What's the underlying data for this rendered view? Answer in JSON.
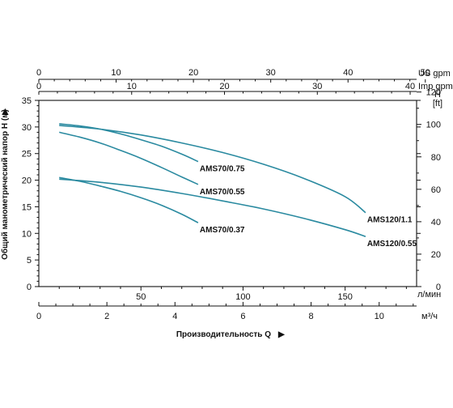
{
  "chart_data": {
    "type": "line",
    "ylabel": "Общий манометрический напор H (м)",
    "xlabel": "Производительность Q",
    "x_axes": {
      "lpm": {
        "unit": "л/мин",
        "ticks": [
          "50",
          "100",
          "150"
        ],
        "tick_values": [
          50,
          100,
          150
        ],
        "range": [
          0,
          185
        ]
      },
      "m3h": {
        "unit": "м³/ч",
        "ticks": [
          "0",
          "2",
          "4",
          "6",
          "8",
          "10"
        ],
        "tick_values": [
          0,
          2,
          4,
          6,
          8,
          10
        ]
      },
      "us_gpm": {
        "unit": "US gpm",
        "ticks": [
          "0",
          "10",
          "20",
          "30",
          "40",
          "50"
        ],
        "tick_values": [
          0,
          10,
          20,
          30,
          40,
          50
        ]
      },
      "imp_gpm": {
        "unit": "Imp gpm",
        "ticks": [
          "0",
          "10",
          "20",
          "30",
          "40"
        ],
        "tick_values": [
          0,
          10,
          20,
          30,
          40
        ]
      }
    },
    "y_axes": {
      "m": {
        "ticks": [
          "0",
          "5",
          "10",
          "15",
          "20",
          "25",
          "30",
          "35"
        ],
        "tick_values": [
          0,
          5,
          10,
          15,
          20,
          25,
          30,
          35
        ],
        "range": [
          0,
          35
        ]
      },
      "ft": {
        "unit": "H\n[ft]",
        "unit_lines": [
          "H",
          "[ft]"
        ],
        "ticks": [
          "0",
          "20",
          "40",
          "60",
          "80",
          "100",
          "120"
        ],
        "tick_values": [
          0,
          20,
          40,
          60,
          80,
          100,
          120
        ]
      }
    },
    "series": [
      {
        "name": "AMS70/0.75",
        "x_lpm": [
          10,
          20,
          30,
          40,
          50,
          60,
          70,
          78
        ],
        "y_m": [
          30.6,
          30.2,
          29.6,
          28.7,
          27.6,
          26.4,
          24.9,
          23.5
        ]
      },
      {
        "name": "AMS70/0.55",
        "x_lpm": [
          10,
          20,
          30,
          40,
          50,
          60,
          70,
          78
        ],
        "y_m": [
          29.0,
          28.1,
          27.0,
          25.6,
          24.1,
          22.4,
          20.6,
          19.2
        ]
      },
      {
        "name": "AMS70/0.37",
        "x_lpm": [
          10,
          20,
          30,
          40,
          50,
          60,
          70,
          78
        ],
        "y_m": [
          20.5,
          19.8,
          18.9,
          17.9,
          16.7,
          15.3,
          13.6,
          12.0
        ]
      },
      {
        "name": "AMS120/1.1",
        "x_lpm": [
          10,
          30,
          50,
          70,
          90,
          110,
          130,
          150,
          160
        ],
        "y_m": [
          30.3,
          29.6,
          28.5,
          27.0,
          25.2,
          23.0,
          20.3,
          16.9,
          13.9
        ]
      },
      {
        "name": "AMS120/0.55",
        "x_lpm": [
          10,
          30,
          50,
          70,
          90,
          110,
          130,
          150,
          160
        ],
        "y_m": [
          20.2,
          19.6,
          18.7,
          17.5,
          16.1,
          14.6,
          12.8,
          10.7,
          9.4
        ]
      }
    ]
  }
}
